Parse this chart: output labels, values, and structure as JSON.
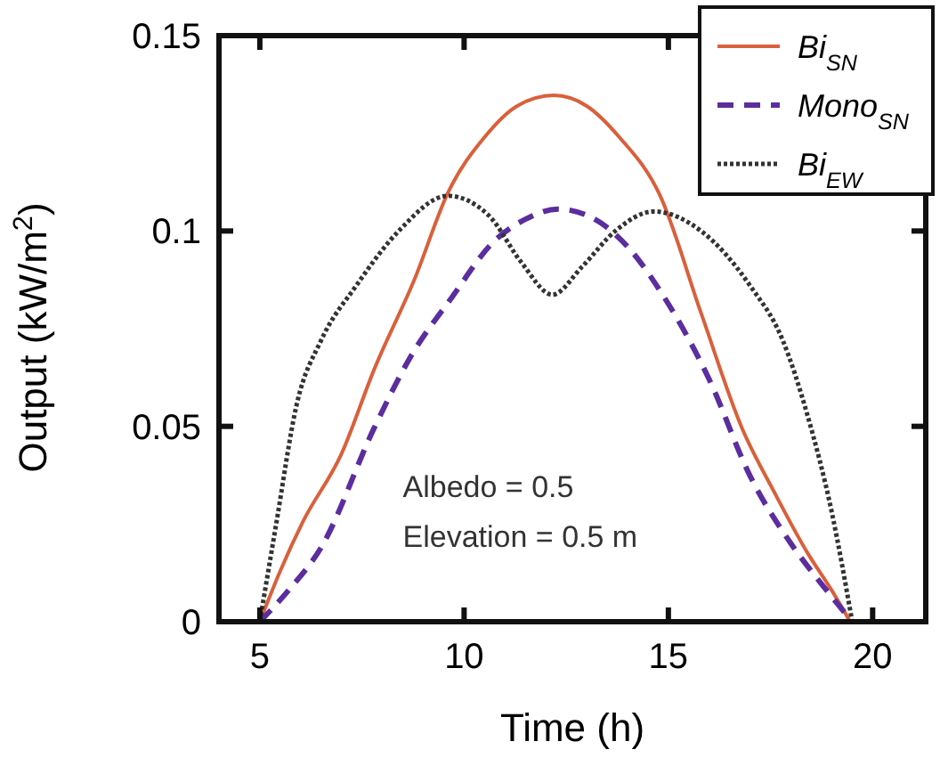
{
  "chart_data": {
    "type": "line",
    "xlabel": "Time (h)",
    "ylabel": "Output (kW/m$^{2}$)",
    "xlim": [
      4,
      21.3
    ],
    "ylim": [
      0,
      0.15
    ],
    "xticks": [
      5,
      10,
      15,
      20
    ],
    "yticks": [
      0,
      0.05,
      0.1,
      0.15
    ],
    "grid": false,
    "legend": "top right",
    "marker": "none",
    "annotations": [
      "Albedo = 0.5",
      "Elevation = 0.5 m"
    ],
    "series": [
      {
        "name": "Bi$_{SN}$",
        "color": "#d9603b",
        "line_style": "solid",
        "x": [
          5,
          5.5,
          6.05,
          7,
          7.8,
          8.8,
          9.6,
          10.5,
          11.3,
          12.2,
          13,
          13.8,
          14.8,
          15.8,
          16.8,
          17.6,
          18.4,
          19,
          19.45
        ],
        "values": [
          0,
          0.013,
          0.0255,
          0.043,
          0.0646,
          0.088,
          0.1097,
          0.124,
          0.132,
          0.1347,
          0.132,
          0.124,
          0.109,
          0.079,
          0.0496,
          0.033,
          0.0177,
          0.008,
          0
        ]
      },
      {
        "name": "Mono$_{SN}$",
        "color": "#5b2d9e",
        "line_style": "dashed",
        "x": [
          5,
          5.7,
          6.5,
          7.8,
          8.7,
          9.7,
          10.7,
          11.5,
          12.3,
          13.2,
          14,
          14.9,
          16,
          17,
          18,
          18.8,
          19.5
        ],
        "values": [
          0,
          0.008,
          0.019,
          0.0496,
          0.068,
          0.083,
          0.097,
          0.103,
          0.1056,
          0.103,
          0.096,
          0.083,
          0.062,
          0.0373,
          0.02,
          0.009,
          0
        ]
      },
      {
        "name": "Bi$_{EW}$",
        "color": "#333333",
        "line_style": "dotted",
        "x": [
          5,
          5.4,
          5.9,
          6.5,
          7.36,
          8.4,
          9.6,
          10.6,
          11.4,
          12.16,
          12.9,
          13.7,
          14.64,
          15.8,
          17,
          17.8,
          18.4,
          19,
          19.5
        ],
        "values": [
          0,
          0.025,
          0.0555,
          0.072,
          0.086,
          0.1,
          0.109,
          0.104,
          0.092,
          0.0837,
          0.091,
          0.1,
          0.105,
          0.1,
          0.086,
          0.072,
          0.053,
          0.028,
          0
        ]
      }
    ]
  }
}
